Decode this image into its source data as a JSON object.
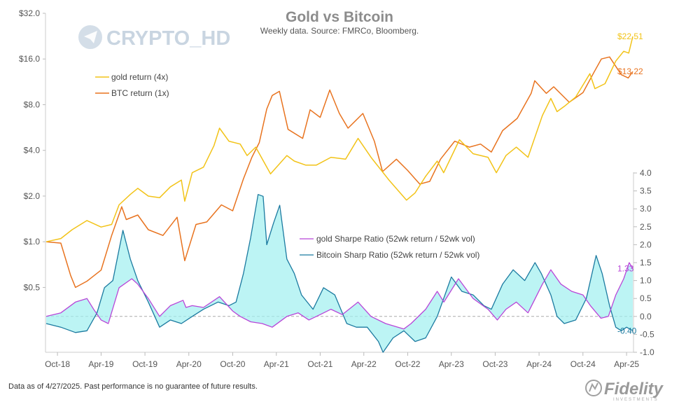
{
  "chart_data": {
    "type": "line",
    "title": "Gold vs Bitcoin",
    "subtitle": "Weekly data.  Source: FMRCo, Bloomberg.",
    "x_labels": [
      "Oct-18",
      "Apr-19",
      "Oct-19",
      "Apr-20",
      "Oct-20",
      "Apr-21",
      "Oct-21",
      "Apr-22",
      "Oct-22",
      "Apr-23",
      "Oct-23",
      "Apr-24",
      "Oct-24",
      "Apr-25"
    ],
    "x_range": [
      "2018-08-15",
      "2025-04-27"
    ],
    "upper_panel": {
      "y_scale": "log2",
      "y_range": [
        0.35,
        32
      ],
      "y_ticks": [
        "$0.5",
        "$1.0",
        "$2.0",
        "$4.0",
        "$8.0",
        "$16.0",
        "$32.0"
      ],
      "series": [
        {
          "name": "gold return (4x)",
          "color": "#f2c318",
          "end_label": "$22.51",
          "points": [
            [
              "2018-08-15",
              1.0
            ],
            [
              "2018-10-15",
              1.05
            ],
            [
              "2018-12-01",
              1.2
            ],
            [
              "2019-02-01",
              1.38
            ],
            [
              "2019-04-01",
              1.25
            ],
            [
              "2019-05-15",
              1.3
            ],
            [
              "2019-06-15",
              1.75
            ],
            [
              "2019-08-01",
              2.05
            ],
            [
              "2019-09-01",
              2.25
            ],
            [
              "2019-10-15",
              2.0
            ],
            [
              "2019-12-01",
              1.95
            ],
            [
              "2020-01-15",
              2.3
            ],
            [
              "2020-03-01",
              2.55
            ],
            [
              "2020-03-15",
              1.85
            ],
            [
              "2020-04-15",
              2.85
            ],
            [
              "2020-06-01",
              3.1
            ],
            [
              "2020-07-15",
              4.3
            ],
            [
              "2020-08-07",
              5.6
            ],
            [
              "2020-09-15",
              4.6
            ],
            [
              "2020-11-01",
              4.4
            ],
            [
              "2020-11-30",
              3.7
            ],
            [
              "2021-01-05",
              4.2
            ],
            [
              "2021-03-08",
              2.8
            ],
            [
              "2021-05-15",
              3.7
            ],
            [
              "2021-06-15",
              3.4
            ],
            [
              "2021-08-01",
              3.2
            ],
            [
              "2021-09-15",
              3.2
            ],
            [
              "2021-11-15",
              3.6
            ],
            [
              "2022-01-15",
              3.5
            ],
            [
              "2022-03-08",
              4.8
            ],
            [
              "2022-05-01",
              3.6
            ],
            [
              "2022-07-15",
              2.55
            ],
            [
              "2022-09-26",
              1.88
            ],
            [
              "2022-11-01",
              2.1
            ],
            [
              "2022-12-15",
              2.7
            ],
            [
              "2023-02-01",
              3.4
            ],
            [
              "2023-02-28",
              2.85
            ],
            [
              "2023-05-05",
              4.7
            ],
            [
              "2023-07-01",
              3.8
            ],
            [
              "2023-09-01",
              3.6
            ],
            [
              "2023-10-06",
              2.85
            ],
            [
              "2023-11-15",
              3.7
            ],
            [
              "2023-12-28",
              4.2
            ],
            [
              "2024-02-15",
              3.6
            ],
            [
              "2024-04-15",
              6.8
            ],
            [
              "2024-05-20",
              8.8
            ],
            [
              "2024-06-15",
              7.2
            ],
            [
              "2024-07-15",
              7.8
            ],
            [
              "2024-09-01",
              9.0
            ],
            [
              "2024-10-30",
              12.8
            ],
            [
              "2024-11-20",
              10.2
            ],
            [
              "2025-01-01",
              11.0
            ],
            [
              "2025-02-15",
              15.5
            ],
            [
              "2025-03-20",
              18.0
            ],
            [
              "2025-04-10",
              17.5
            ],
            [
              "2025-04-27",
              22.51
            ]
          ]
        },
        {
          "name": "BTC return (1x)",
          "color": "#e8731f",
          "end_label": "$13.22",
          "points": [
            [
              "2018-08-15",
              1.0
            ],
            [
              "2018-10-15",
              0.98
            ],
            [
              "2018-11-25",
              0.6
            ],
            [
              "2018-12-15",
              0.5
            ],
            [
              "2019-02-01",
              0.55
            ],
            [
              "2019-04-01",
              0.65
            ],
            [
              "2019-05-15",
              1.1
            ],
            [
              "2019-06-26",
              1.7
            ],
            [
              "2019-07-15",
              1.4
            ],
            [
              "2019-09-01",
              1.5
            ],
            [
              "2019-10-15",
              1.2
            ],
            [
              "2019-12-15",
              1.1
            ],
            [
              "2020-02-12",
              1.45
            ],
            [
              "2020-03-15",
              0.75
            ],
            [
              "2020-05-01",
              1.3
            ],
            [
              "2020-06-15",
              1.35
            ],
            [
              "2020-08-15",
              1.75
            ],
            [
              "2020-10-01",
              1.6
            ],
            [
              "2020-11-15",
              2.6
            ],
            [
              "2020-12-20",
              3.6
            ],
            [
              "2021-01-20",
              4.5
            ],
            [
              "2021-02-20",
              7.5
            ],
            [
              "2021-03-15",
              9.2
            ],
            [
              "2021-04-14",
              9.8
            ],
            [
              "2021-05-20",
              5.5
            ],
            [
              "2021-07-20",
              4.8
            ],
            [
              "2021-08-20",
              7.4
            ],
            [
              "2021-10-01",
              6.6
            ],
            [
              "2021-11-10",
              10.0
            ],
            [
              "2021-12-20",
              7.0
            ],
            [
              "2022-01-25",
              5.6
            ],
            [
              "2022-03-28",
              7.0
            ],
            [
              "2022-05-15",
              4.6
            ],
            [
              "2022-06-18",
              2.9
            ],
            [
              "2022-08-15",
              3.5
            ],
            [
              "2022-10-01",
              2.95
            ],
            [
              "2022-11-20",
              2.4
            ],
            [
              "2023-01-01",
              2.5
            ],
            [
              "2023-02-15",
              3.5
            ],
            [
              "2023-04-15",
              4.6
            ],
            [
              "2023-06-15",
              4.2
            ],
            [
              "2023-08-01",
              4.4
            ],
            [
              "2023-09-15",
              3.9
            ],
            [
              "2023-11-01",
              5.4
            ],
            [
              "2024-01-01",
              6.5
            ],
            [
              "2024-02-28",
              9.5
            ],
            [
              "2024-03-14",
              11.5
            ],
            [
              "2024-05-01",
              9.5
            ],
            [
              "2024-06-01",
              10.5
            ],
            [
              "2024-08-05",
              8.3
            ],
            [
              "2024-10-01",
              9.6
            ],
            [
              "2024-11-15",
              13.0
            ],
            [
              "2024-12-17",
              16.0
            ],
            [
              "2025-01-20",
              16.5
            ],
            [
              "2025-03-10",
              12.6
            ],
            [
              "2025-04-08",
              12.0
            ],
            [
              "2025-04-27",
              13.22
            ]
          ]
        }
      ]
    },
    "lower_panel": {
      "y_range": [
        -1.0,
        4.0
      ],
      "y_ticks": [
        "-1.0",
        "-0.5",
        "0.0",
        "0.5",
        "1.0",
        "1.5",
        "2.0",
        "2.5",
        "3.0",
        "3.5",
        "4.0"
      ],
      "zero_line": "dashed",
      "fill_between": "#9ff0f0",
      "series": [
        {
          "name": "gold Sharpe Ratio (52wk return / 52wk vol)",
          "color": "#b845d8",
          "end_label": "1.33",
          "points": [
            [
              "2018-08-15",
              0.0
            ],
            [
              "2018-10-15",
              0.1
            ],
            [
              "2018-12-15",
              0.4
            ],
            [
              "2019-02-01",
              0.5
            ],
            [
              "2019-03-01",
              0.2
            ],
            [
              "2019-04-01",
              -0.1
            ],
            [
              "2019-05-01",
              -0.2
            ],
            [
              "2019-06-15",
              0.8
            ],
            [
              "2019-08-07",
              1.05
            ],
            [
              "2019-09-01",
              0.9
            ],
            [
              "2019-10-15",
              0.5
            ],
            [
              "2019-12-01",
              0.0
            ],
            [
              "2020-01-15",
              0.3
            ],
            [
              "2020-03-08",
              0.45
            ],
            [
              "2020-03-20",
              0.25
            ],
            [
              "2020-04-15",
              0.3
            ],
            [
              "2020-06-01",
              0.25
            ],
            [
              "2020-08-07",
              0.55
            ],
            [
              "2020-10-01",
              0.15
            ],
            [
              "2020-11-01",
              0.0
            ],
            [
              "2020-12-15",
              -0.15
            ],
            [
              "2021-02-01",
              -0.2
            ],
            [
              "2021-03-15",
              -0.3
            ],
            [
              "2021-05-15",
              0.0
            ],
            [
              "2021-07-01",
              0.1
            ],
            [
              "2021-08-15",
              -0.1
            ],
            [
              "2021-10-01",
              0.05
            ],
            [
              "2021-11-15",
              0.2
            ],
            [
              "2022-01-01",
              0.05
            ],
            [
              "2022-03-08",
              0.4
            ],
            [
              "2022-05-01",
              0.0
            ],
            [
              "2022-07-01",
              -0.2
            ],
            [
              "2022-09-15",
              -0.35
            ],
            [
              "2022-10-15",
              -0.2
            ],
            [
              "2022-12-15",
              0.2
            ],
            [
              "2023-02-01",
              0.7
            ],
            [
              "2023-03-01",
              0.4
            ],
            [
              "2023-05-01",
              1.05
            ],
            [
              "2023-07-01",
              0.5
            ],
            [
              "2023-09-01",
              0.2
            ],
            [
              "2023-10-10",
              -0.1
            ],
            [
              "2023-11-15",
              0.2
            ],
            [
              "2023-12-28",
              0.4
            ],
            [
              "2024-02-15",
              0.1
            ],
            [
              "2024-04-15",
              0.9
            ],
            [
              "2024-05-20",
              1.3
            ],
            [
              "2024-07-01",
              0.9
            ],
            [
              "2024-08-15",
              0.7
            ],
            [
              "2024-10-01",
              0.6
            ],
            [
              "2024-11-01",
              0.3
            ],
            [
              "2024-12-15",
              -0.05
            ],
            [
              "2025-01-15",
              0.0
            ],
            [
              "2025-02-15",
              0.6
            ],
            [
              "2025-03-20",
              1.05
            ],
            [
              "2025-04-12",
              1.5
            ],
            [
              "2025-04-27",
              1.33
            ]
          ]
        },
        {
          "name": "Bitcoin Sharp Ratio (52wk return / 52wk vol)",
          "color": "#1b7aa0",
          "end_label": "-0.40",
          "points": [
            [
              "2018-08-15",
              -0.2
            ],
            [
              "2018-10-15",
              -0.3
            ],
            [
              "2018-12-15",
              -0.45
            ],
            [
              "2019-02-01",
              -0.4
            ],
            [
              "2019-03-15",
              0.1
            ],
            [
              "2019-04-15",
              0.8
            ],
            [
              "2019-05-20",
              1.0
            ],
            [
              "2019-07-01",
              2.4
            ],
            [
              "2019-08-01",
              1.6
            ],
            [
              "2019-09-01",
              1.0
            ],
            [
              "2019-10-15",
              0.4
            ],
            [
              "2019-12-01",
              -0.3
            ],
            [
              "2020-01-15",
              -0.1
            ],
            [
              "2020-03-01",
              -0.2
            ],
            [
              "2020-04-15",
              0.0
            ],
            [
              "2020-06-01",
              0.2
            ],
            [
              "2020-08-01",
              0.4
            ],
            [
              "2020-09-15",
              0.3
            ],
            [
              "2020-10-15",
              0.4
            ],
            [
              "2020-11-15",
              1.2
            ],
            [
              "2020-12-15",
              2.2
            ],
            [
              "2021-01-15",
              3.4
            ],
            [
              "2021-02-05",
              3.35
            ],
            [
              "2021-02-20",
              2.0
            ],
            [
              "2021-03-20",
              2.6
            ],
            [
              "2021-04-15",
              3.1
            ],
            [
              "2021-05-15",
              1.6
            ],
            [
              "2021-06-15",
              1.2
            ],
            [
              "2021-07-15",
              0.6
            ],
            [
              "2021-09-01",
              0.2
            ],
            [
              "2021-10-15",
              0.8
            ],
            [
              "2021-12-01",
              0.6
            ],
            [
              "2022-01-20",
              -0.2
            ],
            [
              "2022-03-01",
              -0.3
            ],
            [
              "2022-04-15",
              -0.3
            ],
            [
              "2022-06-01",
              -0.7
            ],
            [
              "2022-06-20",
              -1.0
            ],
            [
              "2022-08-01",
              -0.6
            ],
            [
              "2022-09-15",
              -0.4
            ],
            [
              "2022-11-01",
              -0.7
            ],
            [
              "2022-12-15",
              -0.6
            ],
            [
              "2023-02-01",
              0.0
            ],
            [
              "2023-04-01",
              1.1
            ],
            [
              "2023-05-15",
              0.7
            ],
            [
              "2023-07-01",
              0.6
            ],
            [
              "2023-08-15",
              0.3
            ],
            [
              "2023-09-15",
              0.2
            ],
            [
              "2023-11-01",
              0.9
            ],
            [
              "2023-12-15",
              1.3
            ],
            [
              "2024-02-01",
              1.0
            ],
            [
              "2024-03-15",
              1.5
            ],
            [
              "2024-04-10",
              1.2
            ],
            [
              "2024-05-20",
              0.6
            ],
            [
              "2024-06-15",
              0.0
            ],
            [
              "2024-07-15",
              -0.2
            ],
            [
              "2024-09-01",
              -0.1
            ],
            [
              "2024-10-15",
              0.5
            ],
            [
              "2024-11-25",
              1.7
            ],
            [
              "2024-12-20",
              1.2
            ],
            [
              "2025-01-20",
              0.3
            ],
            [
              "2025-02-15",
              -0.3
            ],
            [
              "2025-03-10",
              -0.4
            ],
            [
              "2025-04-01",
              -0.3
            ],
            [
              "2025-04-27",
              -0.4
            ]
          ]
        }
      ]
    }
  },
  "watermark_text": "CRYPTO_HD",
  "footnote": "Data as of 4/27/2025. Past performance is no guarantee of future results.",
  "brand_name": "Fidelity",
  "brand_tagline": "INVESTMENTS"
}
